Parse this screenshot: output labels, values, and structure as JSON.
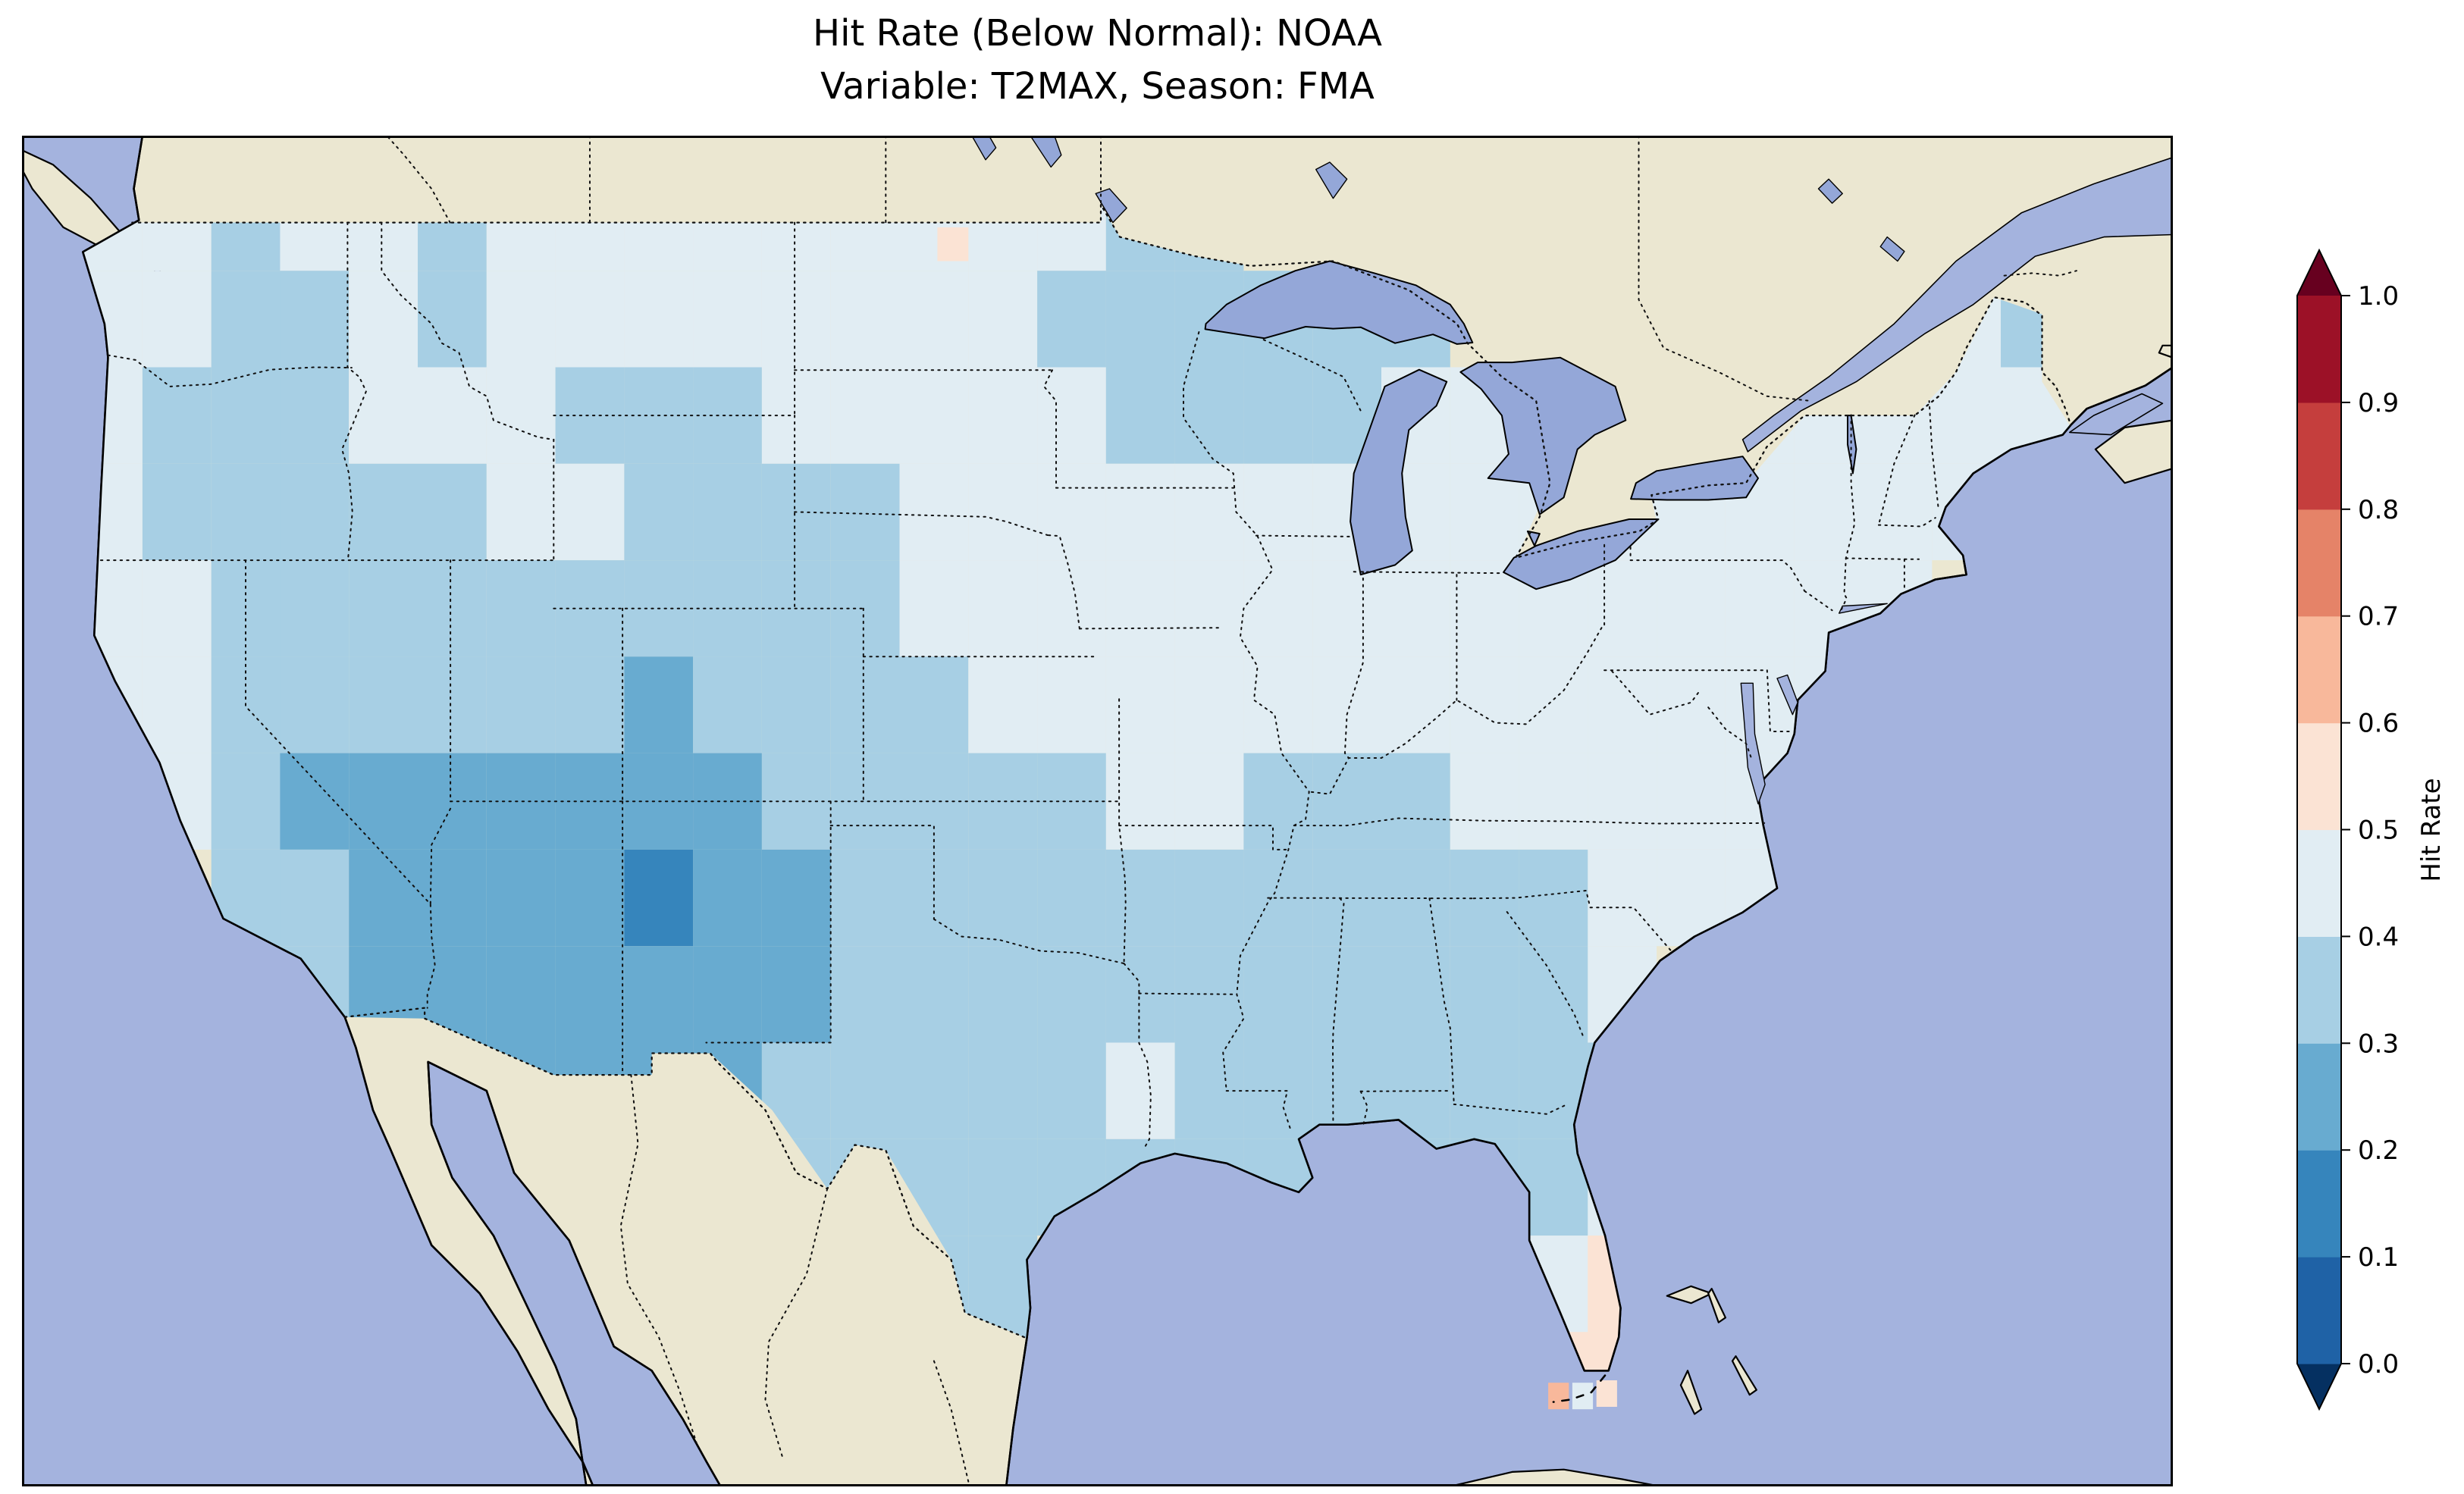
{
  "figure": {
    "title_line1": "Hit Rate (Below Normal): NOAA",
    "title_line2": "Variable: T2MAX, Season: FMA",
    "background": "#ffffff"
  },
  "colorbar": {
    "label": "Hit Rate",
    "ticks_top_to_bottom": [
      "1.0",
      "0.9",
      "0.8",
      "0.7",
      "0.6",
      "0.5",
      "0.4",
      "0.3",
      "0.2",
      "0.1",
      "0.0"
    ],
    "segment_colors_bottom_to_top": [
      "#1f62a6",
      "#3685bc",
      "#68abd0",
      "#a7cfe4",
      "#e1edf3",
      "#fbe3d4",
      "#f8b89b",
      "#e58368",
      "#c53e3d",
      "#9c1127"
    ],
    "under_arrow_color": "#053061",
    "over_arrow_color": "#67001f",
    "outline_color": "#000000"
  },
  "map": {
    "ocean_color": "#a4b3de",
    "land_color": "#ebe7d1",
    "lake_color": "#94a7d8",
    "coastline_color": "#000000",
    "border_line_style": "dotted"
  },
  "chart_data": {
    "type": "heatmap",
    "title": "Hit Rate (Below Normal): NOAA",
    "subtitle": "Variable: T2MAX, Season: FMA",
    "metric": "Hit Rate (Below Normal)",
    "source": "NOAA",
    "variable": "T2MAX",
    "season": "FMA",
    "colormap": "RdBu_r",
    "value_min": 0.0,
    "value_max": 1.0,
    "bin_width": 0.1,
    "colorbar_label": "Hit Rate",
    "grid": {
      "cell_size_deg": 2,
      "lon_west_edge": -125,
      "lat_north_edge": 50,
      "columns": 29,
      "rows_north_to_south": [
        [
          0.45,
          0.45,
          0.35,
          0.45,
          0.45,
          0.35,
          0.45,
          0.45,
          0.45,
          0.45,
          0.45,
          0.45,
          0.45,
          0.45,
          0.45,
          0.35,
          0.35,
          null,
          null,
          null,
          null,
          null,
          null,
          null,
          null,
          null,
          null,
          null,
          null
        ],
        [
          0.45,
          0.45,
          0.35,
          0.35,
          0.45,
          0.35,
          0.45,
          0.45,
          0.45,
          0.45,
          0.45,
          0.45,
          0.45,
          0.45,
          0.35,
          0.35,
          0.35,
          0.35,
          0.35,
          0.35,
          null,
          null,
          null,
          null,
          null,
          null,
          null,
          0.45,
          0.35
        ],
        [
          0.45,
          0.35,
          0.35,
          0.35,
          0.45,
          0.45,
          0.45,
          0.35,
          0.35,
          0.35,
          0.45,
          0.45,
          0.45,
          0.45,
          0.45,
          0.35,
          0.35,
          0.35,
          0.35,
          0.45,
          0.45,
          null,
          null,
          null,
          0.45,
          0.45,
          0.45,
          0.45,
          0.45
        ],
        [
          0.45,
          0.35,
          0.35,
          0.35,
          0.35,
          0.35,
          0.45,
          0.45,
          0.35,
          0.35,
          0.35,
          0.35,
          0.45,
          0.45,
          0.45,
          0.45,
          0.45,
          0.45,
          0.45,
          0.45,
          0.45,
          0.45,
          0.45,
          0.45,
          0.45,
          0.45,
          0.45,
          0.45,
          null
        ],
        [
          0.45,
          0.45,
          0.35,
          0.35,
          0.35,
          0.35,
          0.35,
          0.35,
          0.35,
          0.35,
          0.35,
          0.35,
          0.45,
          0.45,
          0.45,
          0.45,
          0.45,
          0.45,
          0.45,
          0.45,
          0.45,
          0.45,
          0.45,
          0.45,
          0.45,
          0.45,
          0.45,
          null,
          null
        ],
        [
          0.45,
          0.45,
          0.35,
          0.35,
          0.35,
          0.35,
          0.35,
          0.35,
          0.25,
          0.35,
          0.35,
          0.35,
          0.35,
          0.45,
          0.45,
          0.45,
          0.45,
          0.45,
          0.45,
          0.45,
          0.45,
          0.45,
          0.45,
          0.45,
          0.45,
          0.45,
          null,
          null,
          null
        ],
        [
          null,
          0.45,
          0.35,
          0.25,
          0.25,
          0.25,
          0.25,
          0.25,
          0.25,
          0.25,
          0.35,
          0.35,
          0.35,
          0.35,
          0.35,
          0.45,
          0.45,
          0.35,
          0.35,
          0.35,
          0.45,
          0.45,
          0.45,
          0.45,
          0.45,
          null,
          null,
          null,
          null
        ],
        [
          null,
          null,
          0.35,
          0.35,
          0.25,
          0.25,
          0.25,
          0.25,
          0.15,
          0.25,
          0.25,
          0.35,
          0.35,
          0.35,
          0.35,
          0.35,
          0.35,
          0.35,
          0.35,
          0.35,
          0.35,
          0.35,
          0.45,
          0.45,
          0.45,
          null,
          null,
          null,
          null
        ],
        [
          null,
          null,
          null,
          0.35,
          0.25,
          0.25,
          0.25,
          0.25,
          0.25,
          0.25,
          0.25,
          0.35,
          0.35,
          0.35,
          0.35,
          0.35,
          0.35,
          0.35,
          0.35,
          0.35,
          0.35,
          0.35,
          0.45,
          null,
          null,
          null,
          null,
          null,
          null
        ],
        [
          null,
          null,
          null,
          null,
          null,
          0.25,
          0.25,
          0.25,
          0.25,
          0.25,
          0.35,
          0.35,
          0.35,
          0.35,
          0.35,
          0.45,
          0.35,
          0.35,
          0.35,
          0.35,
          0.35,
          0.35,
          0.35,
          null,
          null,
          null,
          null,
          null,
          null
        ],
        [
          null,
          null,
          null,
          null,
          null,
          null,
          null,
          null,
          null,
          null,
          0.35,
          0.35,
          0.35,
          0.35,
          0.35,
          0.35,
          0.35,
          0.35,
          0.35,
          0.35,
          0.35,
          0.35,
          0.45,
          null,
          null,
          null,
          null,
          null,
          null
        ],
        [
          null,
          null,
          null,
          null,
          null,
          null,
          null,
          null,
          null,
          null,
          null,
          null,
          0.35,
          0.35,
          null,
          null,
          null,
          null,
          null,
          null,
          null,
          0.45,
          0.55,
          null,
          null,
          null,
          null,
          null,
          null
        ],
        [
          null,
          null,
          null,
          null,
          null,
          null,
          null,
          null,
          null,
          null,
          null,
          null,
          null,
          0.35,
          null,
          null,
          null,
          null,
          null,
          null,
          null,
          0.55,
          0.55,
          null,
          null,
          null,
          null,
          null,
          null
        ]
      ]
    },
    "extra_cells": [
      {
        "lon": -99.9,
        "lat": 48.9,
        "w": 0.9,
        "h": 0.7,
        "value": 0.55
      },
      {
        "lon": -82.15,
        "lat": 24.95,
        "w": 0.6,
        "h": 0.55,
        "value": 0.65
      },
      {
        "lon": -81.45,
        "lat": 24.95,
        "w": 0.6,
        "h": 0.55,
        "value": 0.45
      },
      {
        "lon": -80.75,
        "lat": 25.0,
        "w": 0.6,
        "h": 0.55,
        "value": 0.55
      }
    ]
  }
}
